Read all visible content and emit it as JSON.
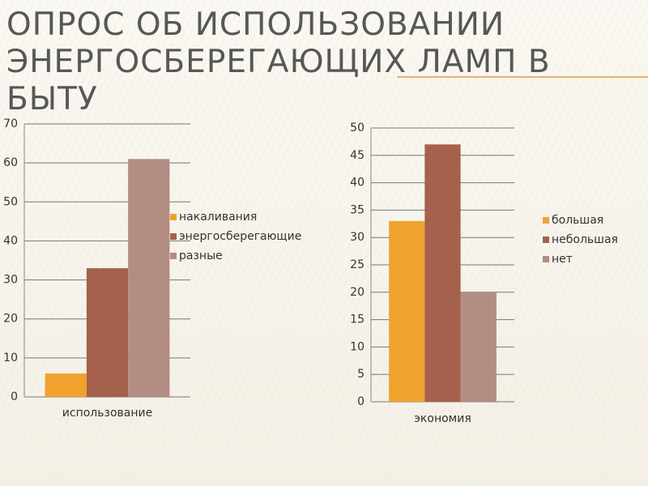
{
  "title": "ОПРОС ОБ ИСПОЛЬЗОВАНИИ ЭНЕРГОСБЕРЕГАЮЩИХ ЛАМП В БЫТУ",
  "chart_data": [
    {
      "type": "bar",
      "categories": [
        "использование"
      ],
      "series": [
        {
          "name": "накаливания",
          "color": "#f0a22e",
          "values": [
            6
          ]
        },
        {
          "name": "энергосберегающие",
          "color": "#a5614c",
          "values": [
            33
          ]
        },
        {
          "name": "разные",
          "color": "#b38c84",
          "values": [
            61
          ]
        }
      ],
      "ylim": [
        0,
        70
      ],
      "yticks": [
        0,
        10,
        20,
        30,
        40,
        50,
        60,
        70
      ],
      "grid": true
    },
    {
      "type": "bar",
      "categories": [
        "экономия"
      ],
      "series": [
        {
          "name": "большая",
          "color": "#f0a22e",
          "values": [
            33
          ]
        },
        {
          "name": "небольшая",
          "color": "#a5614c",
          "values": [
            47
          ]
        },
        {
          "name": "нет",
          "color": "#b38c84",
          "values": [
            20
          ]
        }
      ],
      "ylim": [
        0,
        50
      ],
      "yticks": [
        0,
        5,
        10,
        15,
        20,
        25,
        30,
        35,
        40,
        45,
        50
      ],
      "grid": true
    }
  ]
}
